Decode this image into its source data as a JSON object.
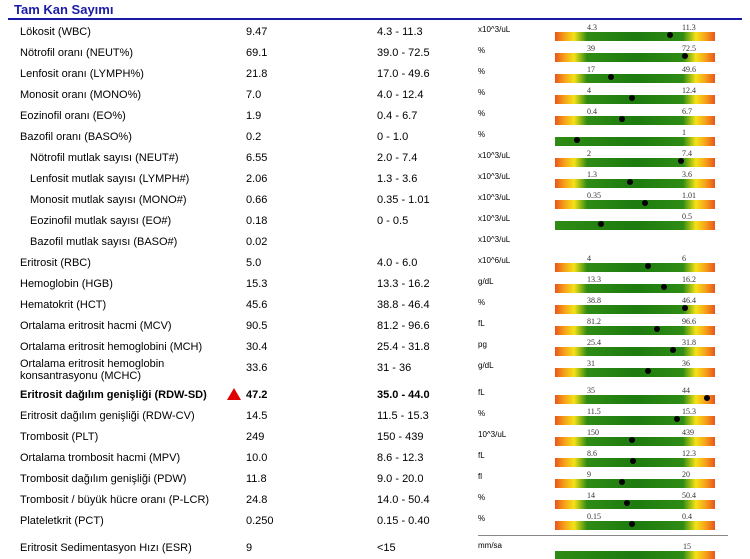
{
  "section_title": "Tam Kan Sayımı",
  "rows": [
    {
      "name": "Lökosit (WBC)",
      "value": "9.47",
      "range": "4.3 - 11.3",
      "unit": "x10^3/uL",
      "lo": "4.3",
      "hi": "11.3",
      "pos": 0.72,
      "bar": "full"
    },
    {
      "name": "Nötrofil oranı (NEUT%)",
      "value": "69.1",
      "range": "39.0 - 72.5",
      "unit": "%",
      "lo": "39",
      "hi": "72.5",
      "pos": 0.81,
      "bar": "full"
    },
    {
      "name": "Lenfosit oranı (LYMPH%)",
      "value": "21.8",
      "range": "17.0 - 49.6",
      "unit": "%",
      "lo": "17",
      "hi": "49.6",
      "pos": 0.35,
      "bar": "full"
    },
    {
      "name": "Monosit oranı (MONO%)",
      "value": "7.0",
      "range": "4.0 - 12.4",
      "unit": "%",
      "lo": "4",
      "hi": "12.4",
      "pos": 0.48,
      "bar": "full"
    },
    {
      "name": "Eozinofil oranı (EO%)",
      "value": "1.9",
      "range": "0.4 - 6.7",
      "unit": "%",
      "lo": "0.4",
      "hi": "6.7",
      "pos": 0.42,
      "bar": "full"
    },
    {
      "name": "Bazofil oranı (BASO%)",
      "value": "0.2",
      "range": "0 - 1.0",
      "unit": "%",
      "lo": "",
      "hi": "1",
      "pos": 0.14,
      "bar": "half"
    },
    {
      "name": "Nötrofil mutlak sayısı (NEUT#)",
      "value": "6.55",
      "range": "2.0 - 7.4",
      "unit": "x10^3/uL",
      "lo": "2",
      "hi": "7.4",
      "pos": 0.79,
      "bar": "full",
      "indent": true
    },
    {
      "name": "Lenfosit mutlak sayısı (LYMPH#)",
      "value": "2.06",
      "range": "1.3 - 3.6",
      "unit": "x10^3/uL",
      "lo": "1.3",
      "hi": "3.6",
      "pos": 0.47,
      "bar": "full",
      "indent": true
    },
    {
      "name": "Monosit mutlak sayısı (MONO#)",
      "value": "0.66",
      "range": "0.35 - 1.01",
      "unit": "x10^3/uL",
      "lo": "0.35",
      "hi": "1.01",
      "pos": 0.56,
      "bar": "full",
      "indent": true
    },
    {
      "name": "Eozinofil mutlak sayısı (EO#)",
      "value": "0.18",
      "range": "0 - 0.5",
      "unit": "x10^3/uL",
      "lo": "",
      "hi": "0.5",
      "pos": 0.29,
      "bar": "half",
      "indent": true
    },
    {
      "name": "Bazofil mutlak sayısı (BASO#)",
      "value": "0.02",
      "range": "",
      "unit": "x10^3/uL",
      "lo": "",
      "hi": "",
      "pos": null,
      "bar": "none",
      "indent": true
    },
    {
      "name": "Eritrosit (RBC)",
      "value": "5.0",
      "range": "4.0 - 6.0",
      "unit": "x10^6/uL",
      "lo": "4",
      "hi": "6",
      "pos": 0.58,
      "bar": "full"
    },
    {
      "name": "Hemoglobin (HGB)",
      "value": "15.3",
      "range": "13.3 - 16.2",
      "unit": "g/dL",
      "lo": "13.3",
      "hi": "16.2",
      "pos": 0.68,
      "bar": "full"
    },
    {
      "name": "Hematokrit (HCT)",
      "value": "45.6",
      "range": "38.8 - 46.4",
      "unit": "%",
      "lo": "38.8",
      "hi": "46.4",
      "pos": 0.81,
      "bar": "full"
    },
    {
      "name": "Ortalama eritrosit hacmi (MCV)",
      "value": "90.5",
      "range": "81.2 - 96.6",
      "unit": "fL",
      "lo": "81.2",
      "hi": "96.6",
      "pos": 0.64,
      "bar": "full"
    },
    {
      "name": "Ortalama eritrosit hemoglobini (MCH)",
      "value": "30.4",
      "range": "25.4 - 31.8",
      "unit": "pg",
      "lo": "25.4",
      "hi": "31.8",
      "pos": 0.74,
      "bar": "full"
    },
    {
      "name": "Ortalama eritrosit hemoglobin konsantrasyonu (MCHC)",
      "value": "33.6",
      "range": "31 - 36",
      "unit": "g/dL",
      "lo": "31",
      "hi": "36",
      "pos": 0.58,
      "bar": "full",
      "two_line": true
    },
    {
      "name": "Eritrosit dağılım genişliği (RDW-SD)",
      "value": "47.2",
      "range": "35.0 - 44.0",
      "unit": "fL",
      "lo": "35",
      "hi": "44",
      "pos": 0.95,
      "bar": "full",
      "flag": true
    },
    {
      "name": "Eritrosit dağılım genişliği (RDW-CV)",
      "value": "14.5",
      "range": "11.5 - 15.3",
      "unit": "%",
      "lo": "11.5",
      "hi": "15.3",
      "pos": 0.76,
      "bar": "full"
    },
    {
      "name": "Trombosit (PLT)",
      "value": "249",
      "range": "150 - 439",
      "unit": "10^3/uL",
      "lo": "150",
      "hi": "439",
      "pos": 0.48,
      "bar": "full"
    },
    {
      "name": "Ortalama trombosit hacmi (MPV)",
      "value": "10.0",
      "range": "8.6 - 12.3",
      "unit": "fL",
      "lo": "8.6",
      "hi": "12.3",
      "pos": 0.49,
      "bar": "full"
    },
    {
      "name": "Trombosit dağılım genişliği (PDW)",
      "value": "11.8",
      "range": "9.0 - 20.0",
      "unit": "fl",
      "lo": "9",
      "hi": "20",
      "pos": 0.42,
      "bar": "full"
    },
    {
      "name": "Trombosit / büyük hücre oranı (P-LCR)",
      "value": "24.8",
      "range": "14.0 - 50.4",
      "unit": "%",
      "lo": "14",
      "hi": "50.4",
      "pos": 0.45,
      "bar": "full"
    },
    {
      "name": "Plateletkrit (PCT)",
      "value": "0.250",
      "range": "0.15 - 0.40",
      "unit": "%",
      "lo": "0.15",
      "hi": "0.4",
      "pos": 0.48,
      "bar": "full"
    }
  ],
  "esr": {
    "name": "Eritrosit Sedimentasyon Hızı (ESR)",
    "value": "9",
    "range": "<15",
    "unit": "mm/sa",
    "hi": "15"
  }
}
